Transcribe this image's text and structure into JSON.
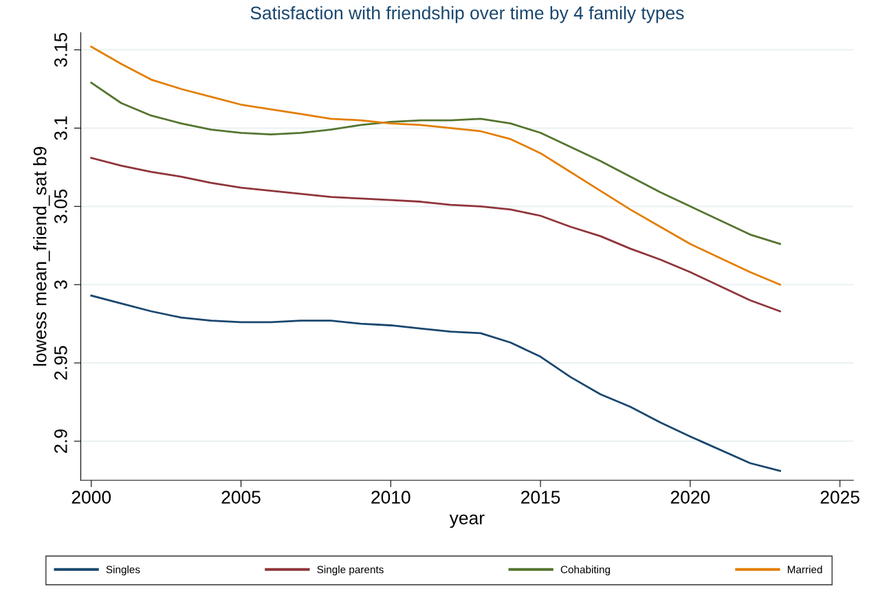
{
  "chart_data": {
    "type": "line",
    "title": "Satisfaction with friendship over time by 4 family types",
    "xlabel": "year",
    "ylabel": "lowess mean_friend_sat b9",
    "x": [
      2000,
      2001,
      2002,
      2003,
      2004,
      2005,
      2006,
      2007,
      2008,
      2009,
      2010,
      2011,
      2012,
      2013,
      2014,
      2015,
      2016,
      2017,
      2018,
      2019,
      2020,
      2022,
      2023
    ],
    "series": [
      {
        "name": "Singles",
        "color": "#1a476f",
        "values": [
          2.993,
          2.988,
          2.983,
          2.979,
          2.977,
          2.976,
          2.976,
          2.977,
          2.977,
          2.975,
          2.974,
          2.972,
          2.97,
          2.969,
          2.963,
          2.954,
          2.941,
          2.93,
          2.922,
          2.912,
          2.903,
          2.886,
          2.881
        ]
      },
      {
        "name": "Single parents",
        "color": "#90353b",
        "values": [
          3.081,
          3.076,
          3.072,
          3.069,
          3.065,
          3.062,
          3.06,
          3.058,
          3.056,
          3.055,
          3.054,
          3.053,
          3.051,
          3.05,
          3.048,
          3.044,
          3.037,
          3.031,
          3.023,
          3.016,
          3.008,
          2.99,
          2.983
        ]
      },
      {
        "name": "Cohabiting",
        "color": "#55752f",
        "values": [
          3.129,
          3.116,
          3.108,
          3.103,
          3.099,
          3.097,
          3.096,
          3.097,
          3.099,
          3.102,
          3.104,
          3.105,
          3.105,
          3.106,
          3.103,
          3.097,
          3.088,
          3.079,
          3.069,
          3.059,
          3.05,
          3.032,
          3.026
        ]
      },
      {
        "name": "Married",
        "color": "#e37e00",
        "values": [
          3.152,
          3.141,
          3.131,
          3.125,
          3.12,
          3.115,
          3.112,
          3.109,
          3.106,
          3.105,
          3.103,
          3.102,
          3.1,
          3.098,
          3.093,
          3.084,
          3.072,
          3.06,
          3.048,
          3.037,
          3.026,
          3.008,
          3.0
        ]
      }
    ],
    "xlim": [
      1999.65,
      2025.45
    ],
    "xticks": [
      2000,
      2005,
      2010,
      2015,
      2020,
      2025
    ],
    "ylim": [
      2.875,
      3.161
    ],
    "yticks": [
      2.9,
      2.95,
      3,
      3.05,
      3.1,
      3.15
    ],
    "grid": "y",
    "legend": "bottom",
    "marker": "none",
    "line_style": "solid"
  }
}
